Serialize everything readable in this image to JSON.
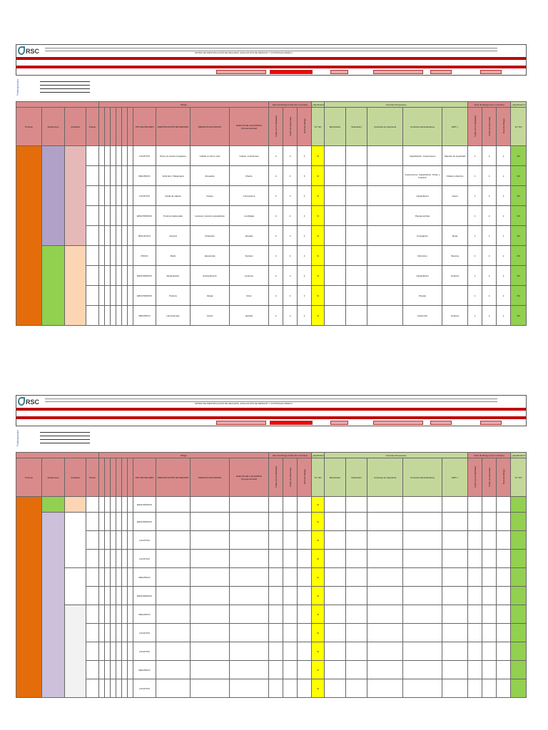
{
  "header": {
    "company_logo_text": "RSC",
    "doc_title": "MATRIZ DE IDENTIFICACIÓN DE PELIGROS, EVALUACIÓN DE RIESGOS Y CONTROLES (IPERC)"
  },
  "matrix": {
    "group_peligro": "Peligro",
    "group_riesgo_inicial": "Nivel de Riesgo Inicial (Sin controles)",
    "group_significancia": "¿Significativo?",
    "group_controles": "Controles Propuestos",
    "group_riesgo_residual": "Nivel de Riesgo (Con controles)",
    "col_proceso": "Proceso",
    "col_subproceso": "Subproceso",
    "col_actividad": "Actividad",
    "col_puesto": "Puesto",
    "col_tipo_peligro": "TIPO DE PELIGRO",
    "col_identificacion": "IDENTIFICACIÓN DE PELIGRO",
    "col_riesgos": "RIESGOS ASOCIADOS",
    "col_efecto": "EFECTO DE LOS DAÑOS (Consecuencias)",
    "col_si_no": "SI / NO",
    "col_eliminacion": "Eliminación",
    "col_sustitucion": "Sustitución",
    "col_ingenieria": "Controles de Ingeniería",
    "col_administrativos": "Controles Administrativos",
    "col_epp": "EPP´s",
    "col_prob": "Índice de Probabilidad",
    "col_sev": "Índice de Severidad",
    "col_nivel": "Nivel de Riesgo",
    "part_label": "Participantes"
  },
  "sheet1_rows": [
    {
      "tipo": "LOCATIVO",
      "peligro": "Pisos y/o suelos irregulares",
      "riesgo": "Caídas a mismo nivel",
      "efecto": "Golpes, contusiones",
      "p": "2",
      "s": "2",
      "n": "4",
      "sig": "SI",
      "admin": "Capacitación. Inspecciones",
      "epp": "Zapatos de seguridad",
      "p2": "1",
      "s2": "2",
      "n2": "2",
      "sig2": "NO"
    },
    {
      "tipo": "MECÁNICO",
      "peligro": "Vehículos / Maquinaria",
      "riesgo": "Atropellos",
      "efecto": "Muerte",
      "p": "2",
      "s": "3",
      "n": "6",
      "sig": "SI",
      "admin": "Inspecciones. Capacitación. Orden y limpieza",
      "epp": "Chaleco reflectivo",
      "p2": "1",
      "s2": "2",
      "n2": "2",
      "sig2": "NO"
    },
    {
      "tipo": "LOCATIVO",
      "peligro": "Caída de objetos",
      "riesgo": "Golpes",
      "efecto": "Contusiones",
      "p": "2",
      "s": "2",
      "n": "4",
      "sig": "SI",
      "admin": "Capacitación",
      "epp": "Casco",
      "p2": "1",
      "s2": "2",
      "n2": "2",
      "sig2": "NO"
    },
    {
      "tipo": "ERGONÓMICO",
      "peligro": "Postura inadecuada",
      "riesgo": "Lesiones músculo esqueléticas",
      "efecto": "Lumbalgia",
      "p": "2",
      "s": "2",
      "n": "4",
      "sig": "SI",
      "admin": "Pausas activas",
      "epp": "",
      "p2": "1",
      "s2": "2",
      "n2": "2",
      "sig2": "NO"
    },
    {
      "tipo": "BIOLÓGICO",
      "peligro": "Insectos",
      "riesgo": "Picaduras",
      "efecto": "Alergias",
      "p": "2",
      "s": "2",
      "n": "4",
      "sig": "SI",
      "admin": "Fumigación",
      "epp": "Ropa",
      "p2": "1",
      "s2": "1",
      "n2": "1",
      "sig2": "NO"
    },
    {
      "tipo": "FÍSICO",
      "peligro": "Ruido",
      "riesgo": "Hipoacusia",
      "efecto": "Sordera",
      "p": "2",
      "s": "2",
      "n": "4",
      "sig": "SI",
      "admin": "Monitoreo",
      "epp": "Tapones",
      "p2": "1",
      "s2": "2",
      "n2": "2",
      "sig2": "NO"
    },
    {
      "tipo": "ERGONÓMICO",
      "peligro": "Manipulación",
      "riesgo": "Sobreesfuerzo",
      "efecto": "Lesiones",
      "p": "2",
      "s": "2",
      "n": "4",
      "sig": "SI",
      "admin": "Capacitación",
      "epp": "Guantes",
      "p2": "1",
      "s2": "2",
      "n2": "2",
      "sig2": "NO"
    },
    {
      "tipo": "ERGONÓMICO",
      "peligro": "Postura",
      "riesgo": "Fatiga",
      "efecto": "Dolor",
      "p": "2",
      "s": "2",
      "n": "4",
      "sig": "SI",
      "admin": "Pausas",
      "epp": "",
      "p2": "1",
      "s2": "2",
      "n2": "2",
      "sig2": "NO"
    },
    {
      "tipo": "MECÁNICO",
      "peligro": "Herramientas",
      "riesgo": "Cortes",
      "efecto": "Heridas",
      "p": "2",
      "s": "2",
      "n": "4",
      "sig": "SI",
      "admin": "Inspección",
      "epp": "Guantes",
      "p2": "1",
      "s2": "2",
      "n2": "2",
      "sig2": "NO"
    }
  ],
  "sheet2_rows": [
    {
      "tipo": "ERGONÓMICO",
      "sig": "SI"
    },
    {
      "tipo": "ERGONÓMICO",
      "sig": "SI"
    },
    {
      "tipo": "LOCATIVO",
      "sig": "SI"
    },
    {
      "tipo": "LOCATIVO",
      "sig": "SI"
    },
    {
      "tipo": "MECÁNICO",
      "sig": "SI"
    },
    {
      "tipo": "ERGONÓMICO",
      "sig": "SI"
    },
    {
      "tipo": "MECÁNICO",
      "sig": "SI"
    },
    {
      "tipo": "LOCATIVO",
      "sig": "SI"
    },
    {
      "tipo": "LOCATIVO",
      "sig": "SI"
    },
    {
      "tipo": "MECÁNICO",
      "sig": "SI"
    },
    {
      "tipo": "LOCATIVO",
      "sig": "SI"
    }
  ]
}
